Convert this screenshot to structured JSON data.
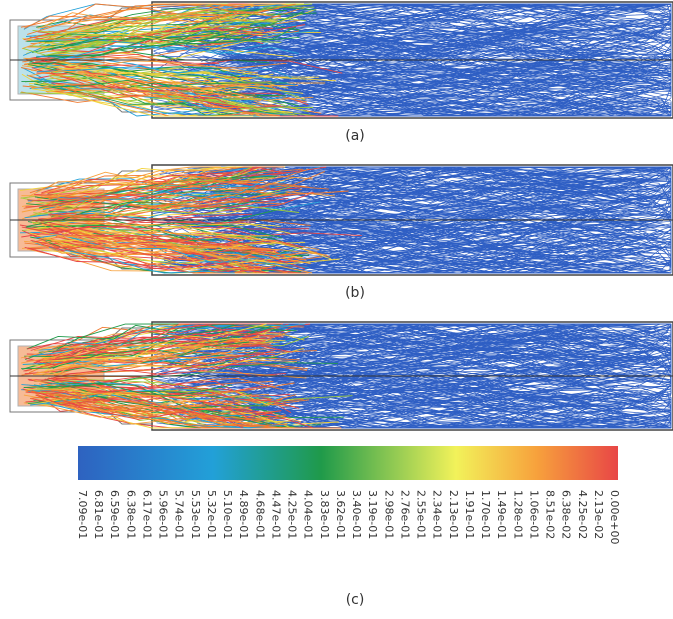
{
  "figure": {
    "panels": [
      {
        "label": "(a)"
      },
      {
        "label": "(b)"
      },
      {
        "label": "(c)"
      }
    ],
    "colorbar": {
      "ticks": [
        "0.00e+00",
        "2.13e-02",
        "4.25e-02",
        "6.38e-02",
        "8.51e-02",
        "1.06e-01",
        "1.28e-01",
        "1.49e-01",
        "1.70e-01",
        "1.91e-01",
        "2.13e-01",
        "2.34e-01",
        "2.55e-01",
        "2.76e-01",
        "2.98e-01",
        "3.19e-01",
        "3.40e-01",
        "3.62e-01",
        "3.83e-01",
        "4.04e-01",
        "4.25e-01",
        "4.47e-01",
        "4.68e-01",
        "4.89e-01",
        "5.10e-01",
        "5.32e-01",
        "5.53e-01",
        "5.74e-01",
        "5.96e-01",
        "6.17e-01",
        "6.38e-01",
        "6.59e-01",
        "6.81e-01",
        "7.09e-01"
      ]
    }
  }
}
